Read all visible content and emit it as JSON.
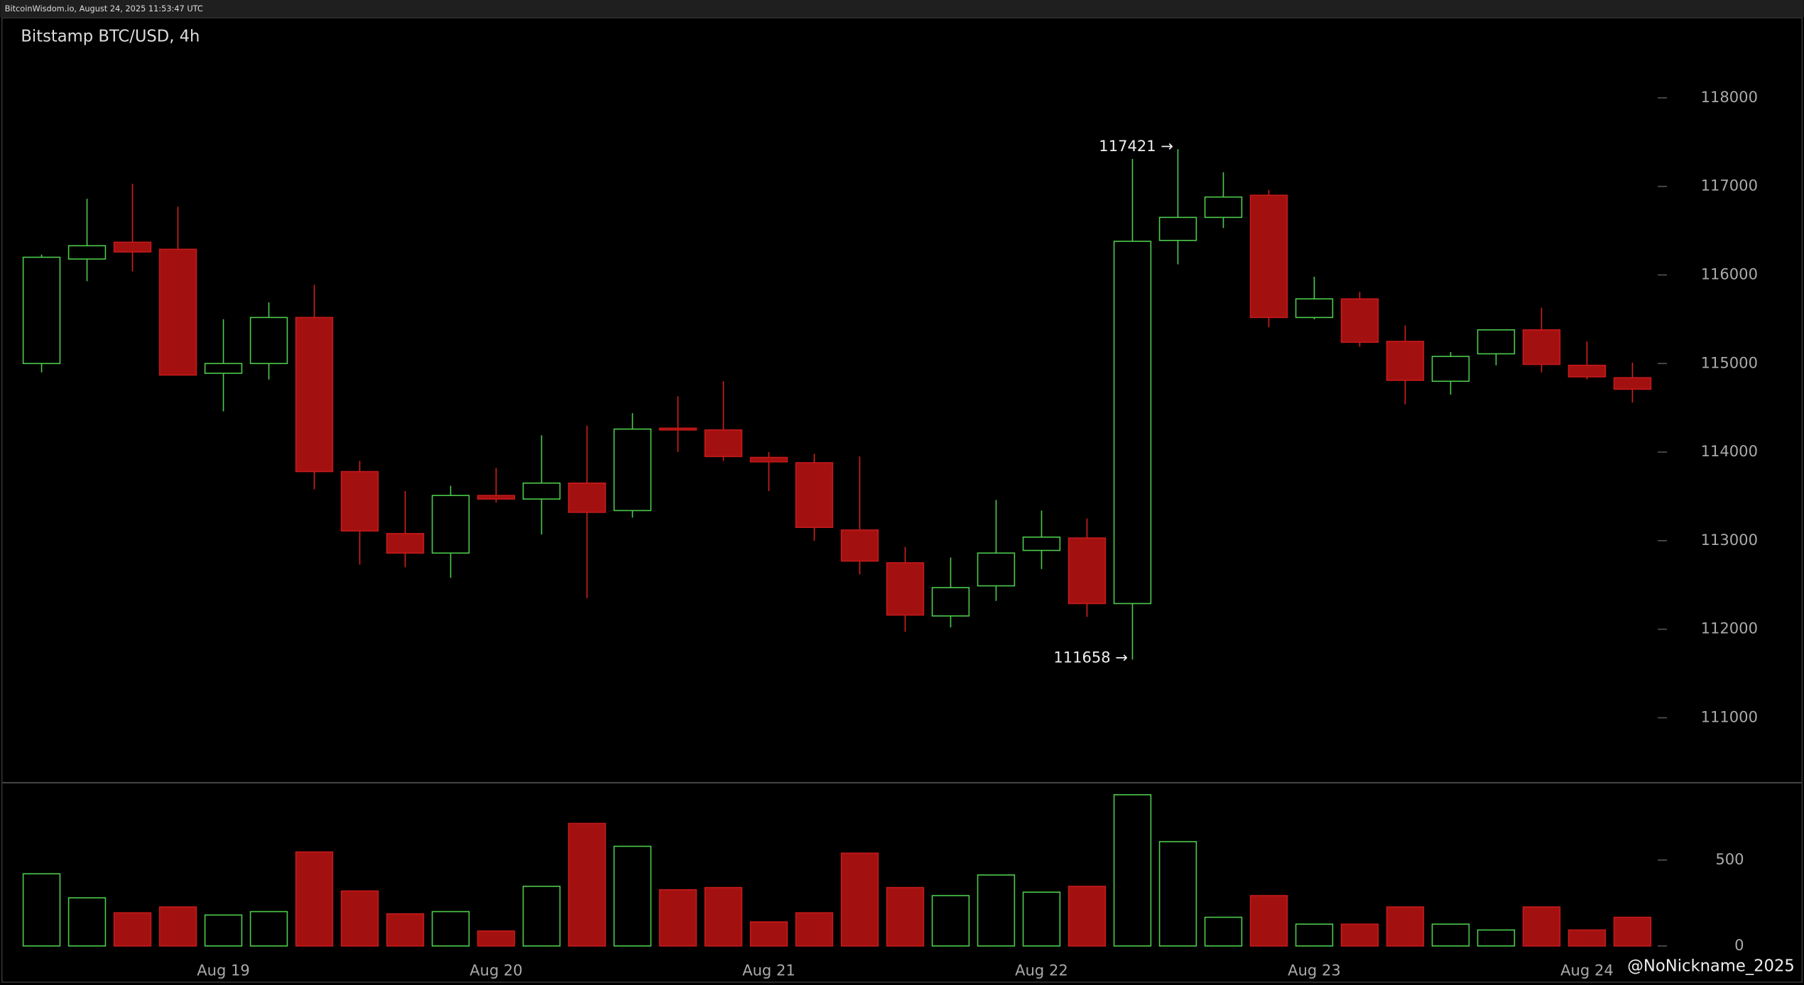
{
  "header": "BitcoinWisdom.io, August 24, 2025 11:53:47 UTC",
  "watermark": "@NoNickname_2025",
  "chart_data": {
    "type": "candlestick",
    "title": "Bitstamp BTC/USD, 4h",
    "categories": [
      null,
      null,
      null,
      null,
      "Aug 19",
      null,
      null,
      null,
      null,
      null,
      "Aug 20",
      null,
      null,
      null,
      null,
      null,
      "Aug 21",
      null,
      null,
      null,
      null,
      null,
      "Aug 22",
      null,
      null,
      null,
      null,
      null,
      "Aug 23",
      null,
      null,
      null,
      null,
      null,
      "Aug 24",
      null
    ],
    "open": [
      115000,
      116180,
      116370,
      116290,
      114890,
      115000,
      115520,
      113780,
      113080,
      112860,
      113510,
      113470,
      113650,
      113340,
      114270,
      114250,
      113940,
      113880,
      113120,
      112750,
      112150,
      112490,
      112890,
      113030,
      112290,
      116390,
      116650,
      116900,
      115520,
      115730,
      115250,
      114800,
      115110,
      115380,
      114980,
      114840
    ],
    "high": [
      116230,
      116860,
      117030,
      116770,
      115500,
      115690,
      115890,
      113900,
      113560,
      113620,
      113820,
      114190,
      114300,
      114440,
      114630,
      114800,
      114000,
      113980,
      113950,
      112930,
      112810,
      113460,
      113340,
      113250,
      117310,
      117421,
      117160,
      116960,
      115980,
      115810,
      115430,
      115130,
      115380,
      115630,
      115250,
      115010
    ],
    "low": [
      114900,
      115930,
      116040,
      114870,
      114460,
      114820,
      113580,
      112730,
      112700,
      112580,
      113430,
      113070,
      112350,
      113260,
      114000,
      113900,
      113560,
      113000,
      112620,
      111970,
      112020,
      112320,
      112680,
      112140,
      111658,
      116120,
      116530,
      115410,
      115500,
      115190,
      114540,
      114650,
      114980,
      114900,
      114820,
      114560
    ],
    "close": [
      116200,
      116330,
      116260,
      114870,
      115000,
      115520,
      113780,
      113110,
      112860,
      113510,
      113470,
      113650,
      113320,
      114260,
      114250,
      113950,
      113890,
      113150,
      112770,
      112160,
      112470,
      112860,
      113040,
      112290,
      116380,
      116650,
      116880,
      115520,
      115730,
      115240,
      114810,
      115080,
      115380,
      114990,
      114850,
      114710
    ],
    "volume": [
      420,
      280,
      193,
      227,
      180,
      200,
      547,
      320,
      187,
      200,
      87,
      347,
      713,
      580,
      327,
      340,
      140,
      193,
      540,
      340,
      293,
      413,
      313,
      347,
      880,
      607,
      167,
      293,
      127,
      127,
      227,
      127,
      93,
      227,
      93,
      167
    ],
    "up_color": "#4cc94c",
    "down_color": "#a31010",
    "ylim": [
      110280,
      118910
    ],
    "yticks": [
      111000,
      112000,
      113000,
      114000,
      115000,
      116000,
      117000,
      118000
    ],
    "volume_ylim": [
      -80,
      950
    ],
    "volume_ticks": [
      0,
      500
    ],
    "annotations": [
      {
        "value": 117421,
        "label": "117421 →"
      },
      {
        "value": 111658,
        "label": "111658 →"
      }
    ]
  }
}
